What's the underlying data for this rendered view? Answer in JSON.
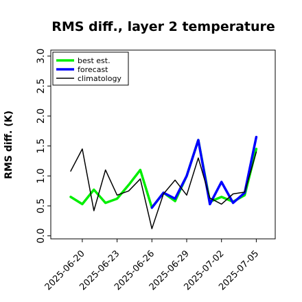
{
  "chart_data": {
    "type": "line",
    "title": "RMS diff., layer 2 temperature",
    "xlabel": "",
    "ylabel": "RMS diff. (K)",
    "ylim": [
      -0.05,
      3.1
    ],
    "yticks": [
      0.0,
      0.5,
      1.0,
      1.5,
      2.0,
      2.5,
      3.0
    ],
    "ytick_labels": [
      "0.0",
      "0.5",
      "1.0",
      "1.5",
      "2.0",
      "2.5",
      "3.0"
    ],
    "xticks": [
      "2025-06-20",
      "2025-06-23",
      "2025-06-26",
      "2025-06-29",
      "2025-07-02",
      "2025-07-05"
    ],
    "highlight_tick": "2025-06-26",
    "highlight_color": "#2ca02c",
    "x": [
      "2025-06-19",
      "2025-06-20",
      "2025-06-21",
      "2025-06-22",
      "2025-06-23",
      "2025-06-24",
      "2025-06-25",
      "2025-06-26",
      "2025-06-27",
      "2025-06-28",
      "2025-06-29",
      "2025-06-30",
      "2025-07-01",
      "2025-07-02",
      "2025-07-03",
      "2025-07-04",
      "2025-07-05"
    ],
    "series": [
      {
        "name": "best est.",
        "color": "#00ee00",
        "values": [
          0.65,
          0.53,
          0.77,
          0.55,
          0.62,
          0.85,
          1.1,
          0.47,
          0.72,
          0.58,
          1.0,
          1.6,
          0.57,
          0.65,
          0.57,
          0.68,
          1.45
        ]
      },
      {
        "name": "forecast",
        "color": "#0000ff",
        "values": [
          null,
          null,
          null,
          null,
          null,
          null,
          null,
          0.47,
          0.72,
          0.62,
          1.0,
          1.6,
          0.53,
          0.9,
          0.55,
          0.72,
          1.65
        ]
      },
      {
        "name": "climatology",
        "color": "#000000",
        "values": [
          1.08,
          1.45,
          0.42,
          1.1,
          0.68,
          0.75,
          0.95,
          0.12,
          0.7,
          0.93,
          0.68,
          1.3,
          0.63,
          0.53,
          0.7,
          0.73,
          1.4
        ]
      }
    ],
    "legend_position": "top-left",
    "grid": false
  }
}
